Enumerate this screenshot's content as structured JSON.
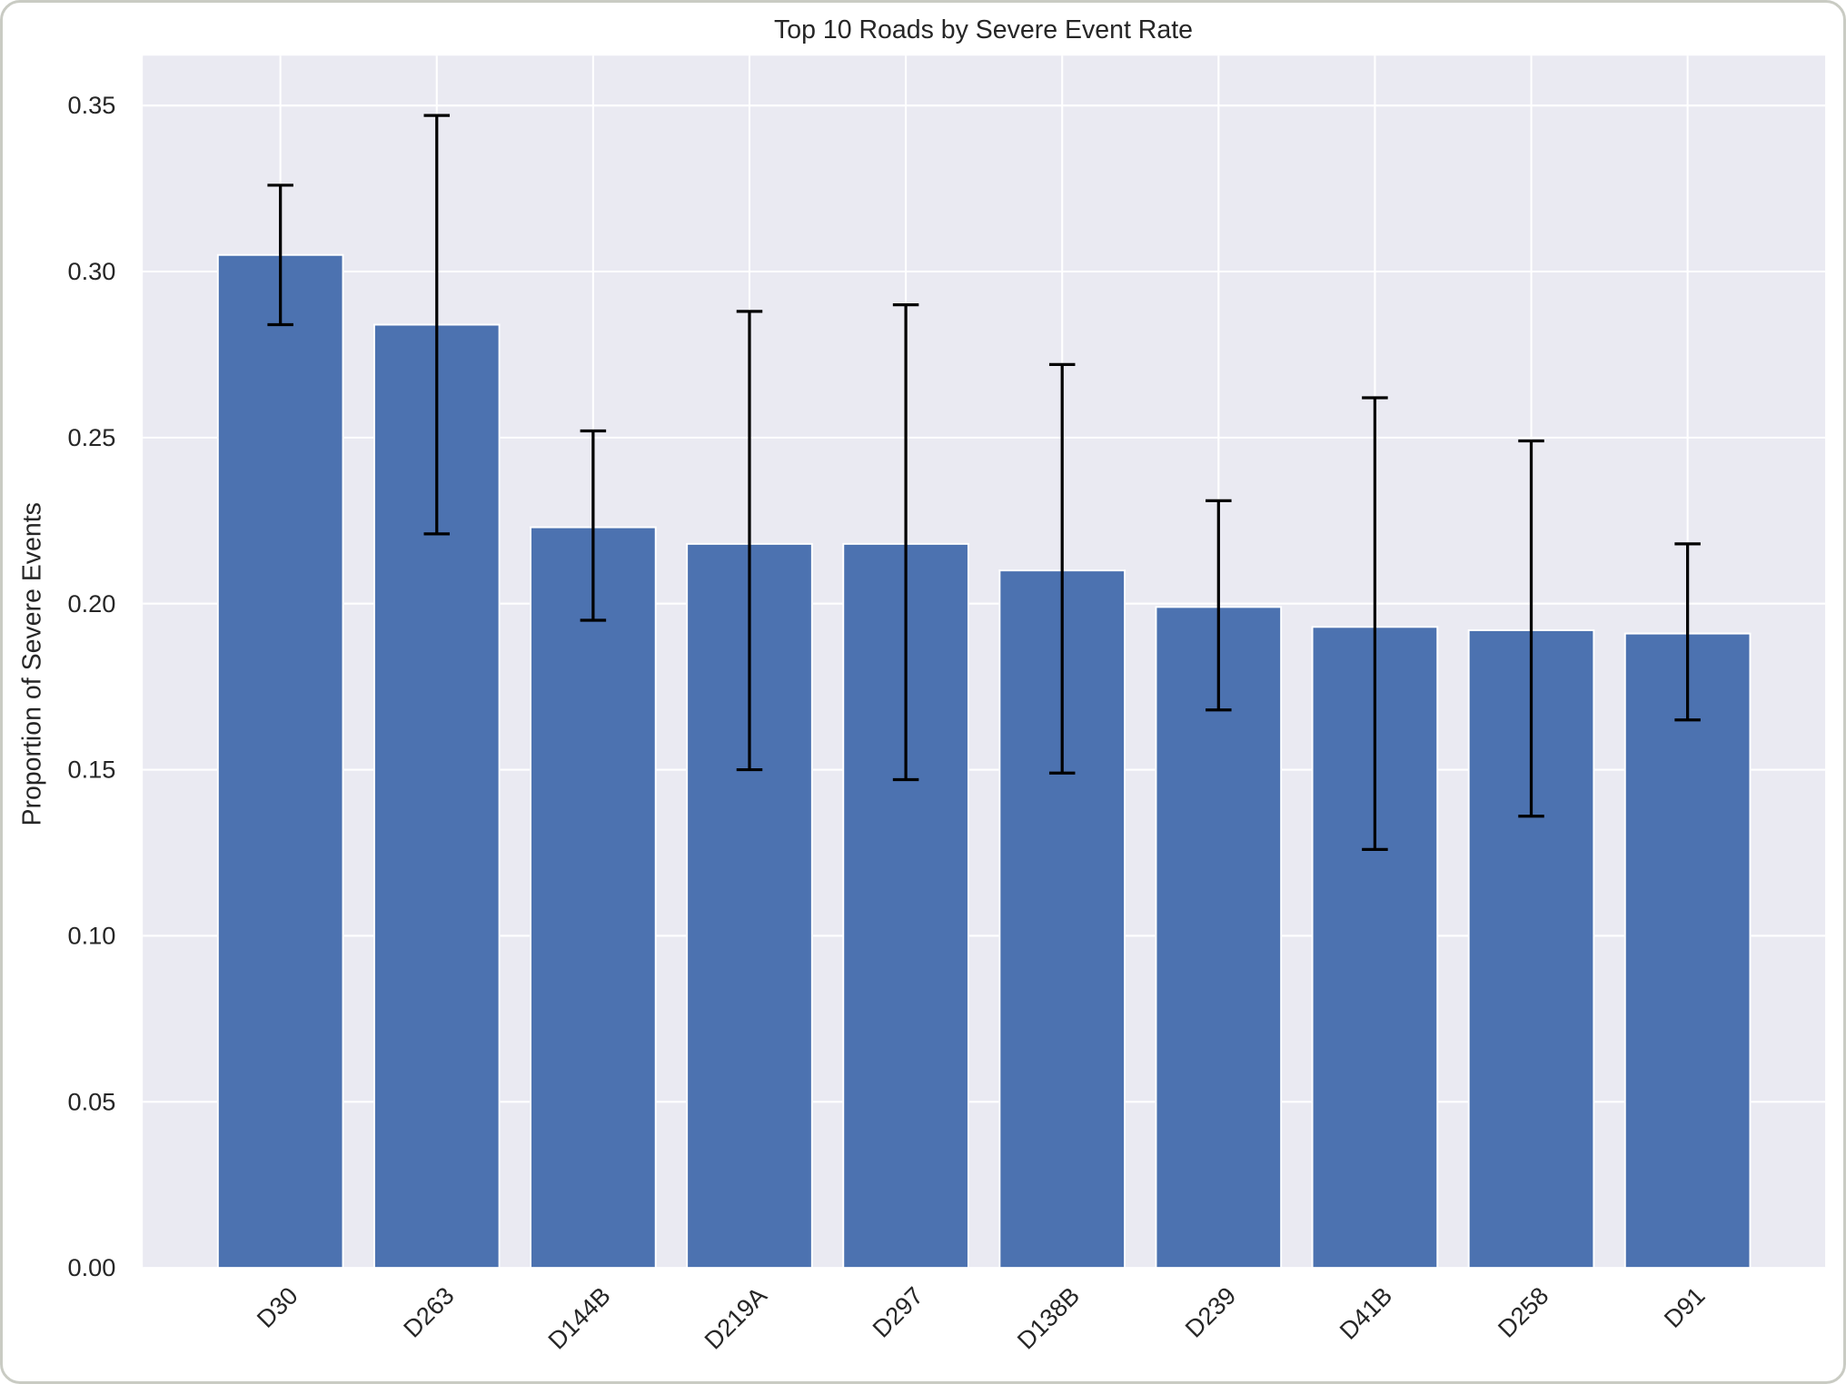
{
  "chart_data": {
    "type": "bar",
    "title": "Top 10 Roads by Severe Event Rate",
    "xlabel": "",
    "ylabel": "Proportion of Severe Events",
    "categories": [
      "D30",
      "D263",
      "D144B",
      "D219A",
      "D297",
      "D138B",
      "D239",
      "D41B",
      "D258",
      "D91"
    ],
    "values": [
      0.305,
      0.284,
      0.223,
      0.218,
      0.218,
      0.21,
      0.199,
      0.193,
      0.192,
      0.191
    ],
    "error_low": [
      0.284,
      0.221,
      0.195,
      0.15,
      0.147,
      0.149,
      0.168,
      0.126,
      0.136,
      0.165
    ],
    "error_high": [
      0.326,
      0.347,
      0.252,
      0.288,
      0.29,
      0.272,
      0.231,
      0.262,
      0.249,
      0.218
    ],
    "ylim": [
      0,
      0.365
    ],
    "yticks": [
      "0.00",
      "0.05",
      "0.10",
      "0.15",
      "0.20",
      "0.25",
      "0.30",
      "0.35"
    ],
    "grid": true,
    "bar_color": "#4c72b0",
    "background_color": "#eaeaf2",
    "error_color": "#000000"
  }
}
